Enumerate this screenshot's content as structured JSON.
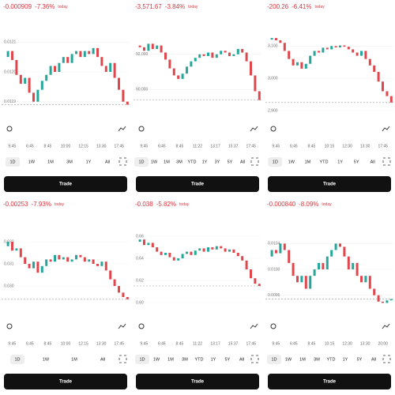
{
  "style": {
    "up_color": "#26a69a",
    "down_color": "#e0474c",
    "change_color": "#d9363e"
  },
  "panels": [
    {
      "header": {
        "change": "-0.000909",
        "percent": "-7.36%",
        "suffix": "today"
      },
      "chart": {
        "type": "candlestick",
        "ylim": [
          0.01187,
          0.01213
        ],
        "yticks": [
          {
            "value": 0.0121,
            "label": "0.0121"
          },
          {
            "value": 0.012,
            "label": "0.0120"
          },
          {
            "value": 0.0119,
            "label": "0.0119"
          }
        ],
        "closes": [
          0.01205,
          0.01207,
          0.01204,
          0.01199,
          0.01196,
          0.01198,
          0.01193,
          0.0119,
          0.01194,
          0.01197,
          0.01199,
          0.01202,
          0.012,
          0.01203,
          0.01205,
          0.01203,
          0.01206,
          0.01207,
          0.01205,
          0.01207,
          0.01206,
          0.01208,
          0.01205,
          0.01202,
          0.012,
          0.01203,
          0.01198,
          0.01194,
          0.0119,
          0.01189
        ]
      },
      "xlabels": [
        "9:45",
        "6:45",
        "8:45",
        "10:00",
        "12:15",
        "13:30",
        "17:45"
      ],
      "periods": [
        "1D",
        "1W",
        "1M",
        "3M",
        "1Y",
        "All"
      ],
      "button": "Trade"
    },
    {
      "header": {
        "change": "-3,571.67",
        "percent": "-3.84%",
        "suffix": "today"
      },
      "chart": {
        "type": "candlestick",
        "ylim": [
          88800,
          93200
        ],
        "yticks": [
          {
            "value": 92000,
            "label": "92,000"
          },
          {
            "value": 90000,
            "label": "90,000"
          }
        ],
        "closes": [
          92500,
          92400,
          92200,
          92600,
          92300,
          92500,
          92100,
          91700,
          91200,
          90800,
          90600,
          90900,
          91300,
          91600,
          91800,
          92000,
          91900,
          92100,
          91800,
          92000,
          92200,
          92100,
          91900,
          92000,
          92300,
          92100,
          91600,
          90800,
          89900,
          89400
        ]
      },
      "xlabels": [
        "9:45",
        "6:45",
        "8:45",
        "11:22",
        "13:17",
        "15:37",
        "17:45"
      ],
      "periods": [
        "1D",
        "1W",
        "1M",
        "3M",
        "YTD",
        "1Y",
        "3Y",
        "5Y",
        "All"
      ],
      "button": "Trade"
    },
    {
      "header": {
        "change": "-200.26",
        "percent": "-6.41%",
        "suffix": "today"
      },
      "chart": {
        "type": "candlestick",
        "ylim": [
          2900,
          3140
        ],
        "yticks": [
          {
            "value": 3100,
            "label": "3,100"
          },
          {
            "value": 3000,
            "label": "3,000"
          },
          {
            "value": 2900,
            "label": "2,900"
          }
        ],
        "closes": [
          3120,
          3125,
          3118,
          3110,
          3085,
          3060,
          3040,
          3050,
          3030,
          3045,
          3070,
          3085,
          3080,
          3095,
          3090,
          3100,
          3096,
          3102,
          3098,
          3090,
          3080,
          3070,
          3085,
          3060,
          3040,
          3020,
          2990,
          2960,
          2945,
          2925
        ]
      },
      "xlabels": [
        "9:45",
        "6:45",
        "8:45",
        "10:15",
        "12:30",
        "13:30",
        "17:45"
      ],
      "periods": [
        "1D",
        "1W",
        "1M",
        "YTD",
        "1Y",
        "5Y",
        "All"
      ],
      "button": "Trade"
    },
    {
      "header": {
        "change": "-0.00253",
        "percent": "-7.93%",
        "suffix": "today"
      },
      "chart": {
        "type": "candlestick",
        "ylim": [
          0.029,
          0.0325
        ],
        "yticks": [
          {
            "value": 0.032,
            "label": "0.032"
          },
          {
            "value": 0.031,
            "label": "0.031"
          },
          {
            "value": 0.03,
            "label": "0.030"
          }
        ],
        "closes": [
          0.0318,
          0.032,
          0.0316,
          0.0317,
          0.0313,
          0.031,
          0.0308,
          0.0311,
          0.0306,
          0.0309,
          0.0312,
          0.0311,
          0.0314,
          0.0312,
          0.0313,
          0.0311,
          0.0312,
          0.0314,
          0.0313,
          0.0311,
          0.0312,
          0.031,
          0.0309,
          0.0311,
          0.0307,
          0.0303,
          0.03,
          0.0297,
          0.0295,
          0.0294
        ]
      },
      "xlabels": [
        "9:45",
        "6:45",
        "8:45",
        "10:00",
        "12:15",
        "13:30",
        "17:45"
      ],
      "periods": [
        "1D",
        "1W",
        "1M",
        "All"
      ],
      "button": "Trade"
    },
    {
      "header": {
        "change": "-0.038",
        "percent": "-5.82%",
        "suffix": "today"
      },
      "chart": {
        "type": "candlestick",
        "ylim": [
          0.595,
          0.665
        ],
        "yticks": [
          0.66,
          0.64,
          0.62,
          {
            "value": 0.6,
            "label": "0.60"
          }
        ],
        "closes": [
          0.655,
          0.657,
          0.652,
          0.654,
          0.65,
          0.646,
          0.643,
          0.645,
          0.641,
          0.638,
          0.64,
          0.644,
          0.646,
          0.643,
          0.647,
          0.649,
          0.646,
          0.65,
          0.648,
          0.651,
          0.649,
          0.646,
          0.648,
          0.645,
          0.642,
          0.638,
          0.63,
          0.622,
          0.617,
          0.615
        ]
      },
      "xlabels": [
        "9:45",
        "6:45",
        "8:45",
        "11:22",
        "13:17",
        "15:37",
        "17:45"
      ],
      "periods": [
        "1D",
        "1W",
        "1M",
        "3M",
        "YTD",
        "1Y",
        "5Y",
        "All"
      ],
      "button": "Trade"
    },
    {
      "header": {
        "change": "-0.000840",
        "percent": "-8.09%",
        "suffix": "today"
      },
      "chart": {
        "type": "candlestick",
        "ylim": [
          0.0094,
          0.0106
        ],
        "yticks": [
          0.0104,
          {
            "value": 0.01,
            "label": "0.0100"
          },
          0.0096
        ],
        "closes": [
          0.0102,
          0.0103,
          0.01025,
          0.0104,
          0.0103,
          0.0101,
          0.0099,
          0.0098,
          0.0099,
          0.0097,
          0.0099,
          0.01,
          0.0101,
          0.01,
          0.0102,
          0.0103,
          0.0104,
          0.01035,
          0.0102,
          0.01,
          0.0101,
          0.0099,
          0.0098,
          0.0099,
          0.0097,
          0.0096,
          0.0095,
          0.00948,
          0.00952,
          0.00954
        ]
      },
      "xlabels": [
        "9:45",
        "6:45",
        "8:45",
        "10:15",
        "12:30",
        "13:30",
        "20:00"
      ],
      "periods": [
        "1D",
        "1W",
        "1M",
        "3M",
        "YTD",
        "1Y",
        "5Y",
        "All"
      ],
      "button": "Trade"
    }
  ]
}
